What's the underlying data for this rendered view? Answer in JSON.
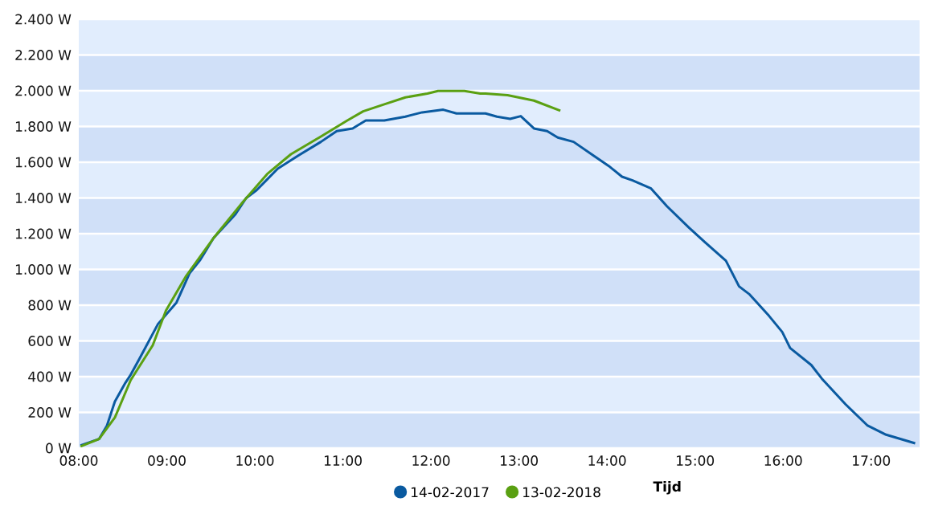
{
  "chart_data": {
    "type": "line",
    "xlabel": "Tijd",
    "xlim": [
      8,
      17.55
    ],
    "ylim": [
      0,
      2400
    ],
    "xticks": [
      {
        "value": 8,
        "label": "08:00"
      },
      {
        "value": 9,
        "label": "09:00"
      },
      {
        "value": 10,
        "label": "10:00"
      },
      {
        "value": 11,
        "label": "11:00"
      },
      {
        "value": 12,
        "label": "12:00"
      },
      {
        "value": 13,
        "label": "13:00"
      },
      {
        "value": 14,
        "label": "14:00"
      },
      {
        "value": 15,
        "label": "15:00"
      },
      {
        "value": 16,
        "label": "16:00"
      },
      {
        "value": 17,
        "label": "17:00"
      }
    ],
    "yticks": [
      {
        "value": 0,
        "label": "0 W"
      },
      {
        "value": 200,
        "label": "200 W"
      },
      {
        "value": 400,
        "label": "400 W"
      },
      {
        "value": 600,
        "label": "600 W"
      },
      {
        "value": 800,
        "label": "800 W"
      },
      {
        "value": 1000,
        "label": "1.000 W"
      },
      {
        "value": 1200,
        "label": "1.200 W"
      },
      {
        "value": 1400,
        "label": "1.400 W"
      },
      {
        "value": 1600,
        "label": "1.600 W"
      },
      {
        "value": 1800,
        "label": "1.800 W"
      },
      {
        "value": 2000,
        "label": "2.000 W"
      },
      {
        "value": 2200,
        "label": "2.200 W"
      },
      {
        "value": 2400,
        "label": "2.400 W"
      }
    ],
    "grid": "y",
    "legend": "bottom",
    "marker": "none",
    "line_style": "solid",
    "bands": [
      {
        "axis": "y",
        "from": 0,
        "to": 200,
        "color": "#d0e0f8"
      },
      {
        "axis": "y",
        "from": 400,
        "to": 600,
        "color": "#d0e0f8"
      },
      {
        "axis": "y",
        "from": 800,
        "to": 1000,
        "color": "#d0e0f8"
      },
      {
        "axis": "y",
        "from": 1200,
        "to": 1400,
        "color": "#d0e0f8"
      },
      {
        "axis": "y",
        "from": 1600,
        "to": 1800,
        "color": "#d0e0f8"
      },
      {
        "axis": "y",
        "from": 2000,
        "to": 2200,
        "color": "#d0e0f8"
      }
    ],
    "series": [
      {
        "name": "14-02-2017",
        "color": "#0a5aa0",
        "x": [
          8.02,
          8.23,
          8.32,
          8.41,
          8.53,
          8.59,
          8.69,
          8.9,
          9.11,
          9.26,
          9.38,
          9.53,
          9.78,
          9.9,
          10.02,
          10.14,
          10.26,
          10.5,
          10.75,
          10.93,
          11.11,
          11.26,
          11.47,
          11.71,
          11.9,
          12.14,
          12.29,
          12.44,
          12.62,
          12.75,
          12.9,
          13.02,
          13.17,
          13.32,
          13.44,
          13.62,
          13.84,
          14.02,
          14.17,
          14.29,
          14.5,
          14.68,
          14.93,
          15.11,
          15.35,
          15.5,
          15.62,
          15.84,
          15.99,
          16.08,
          16.32,
          16.44,
          16.71,
          16.96,
          17.17,
          17.5
        ],
        "values": [
          15,
          51,
          126,
          261,
          366,
          411,
          501,
          695,
          815,
          980,
          1054,
          1175,
          1309,
          1399,
          1444,
          1504,
          1564,
          1639,
          1714,
          1774,
          1789,
          1834,
          1834,
          1855,
          1879,
          1894,
          1873,
          1873,
          1873,
          1855,
          1843,
          1858,
          1789,
          1774,
          1738,
          1714,
          1639,
          1579,
          1519,
          1498,
          1453,
          1354,
          1234,
          1153,
          1049,
          905,
          860,
          740,
          650,
          560,
          465,
          389,
          245,
          126,
          75,
          27
        ]
      },
      {
        "name": "13-02-2018",
        "color": "#5aa012",
        "x": [
          8.02,
          8.23,
          8.41,
          8.59,
          8.84,
          8.99,
          9.22,
          9.53,
          9.86,
          10.14,
          10.41,
          10.75,
          11.05,
          11.23,
          11.47,
          11.71,
          11.96,
          12.08,
          12.38,
          12.56,
          12.62,
          12.87,
          13.17,
          13.47
        ],
        "values": [
          10,
          51,
          171,
          381,
          575,
          770,
          964,
          1175,
          1375,
          1534,
          1645,
          1744,
          1834,
          1885,
          1924,
          1963,
          1984,
          1999,
          1999,
          1984,
          1984,
          1975,
          1945,
          1888
        ]
      }
    ]
  }
}
